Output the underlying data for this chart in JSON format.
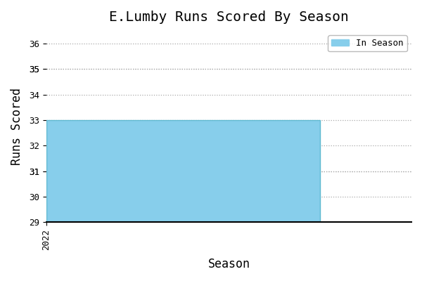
{
  "title": "E.Lumby Runs Scored By Season",
  "xlabel": "Season",
  "ylabel": "Runs Scored",
  "bar_x": 2022,
  "bar_value": 33,
  "bar_color": "#87CEEB",
  "bar_edgecolor": "#5DB8D0",
  "xlim": [
    2022,
    2022.8
  ],
  "ylim": [
    29,
    36.5
  ],
  "yticks": [
    29,
    30,
    31,
    31,
    32,
    33,
    34,
    35,
    35,
    36
  ],
  "xtick_pos": 2022,
  "xtick_label": "2022",
  "legend_label": "In Season",
  "background_color": "#ffffff",
  "title_fontsize": 14,
  "axis_label_fontsize": 12,
  "tick_fontsize": 9,
  "font_family": "monospace",
  "bar_width": 0.6
}
